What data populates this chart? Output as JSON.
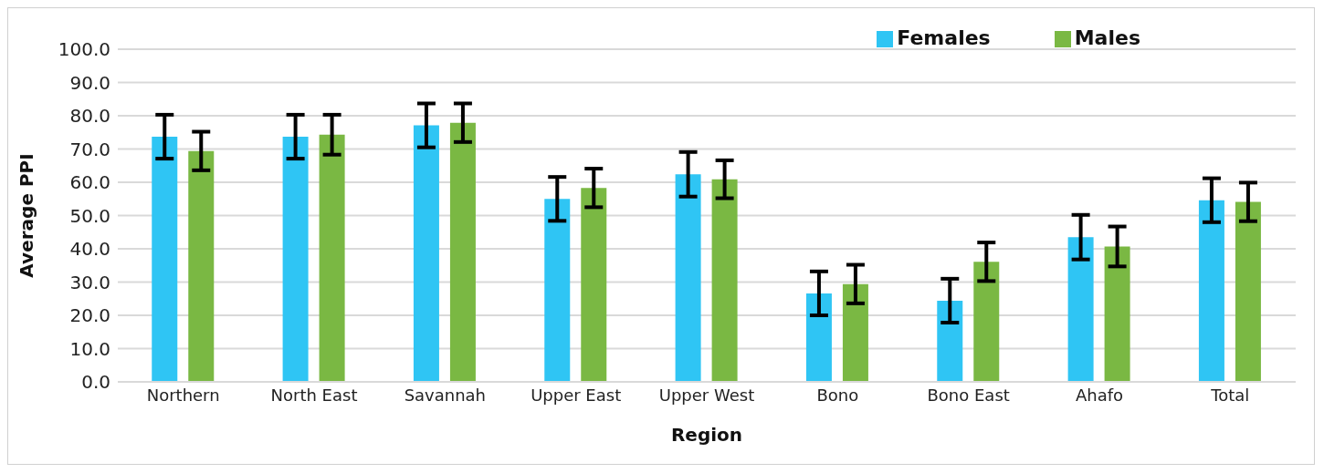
{
  "chart_data": {
    "type": "bar",
    "xlabel": "Region",
    "ylabel": "Average PPI",
    "categories": [
      "Northern",
      "North East",
      "Savannah",
      "Upper East",
      "Upper West",
      "Bono",
      "Bono East",
      "Ahafo",
      "Total"
    ],
    "series": [
      {
        "name": "Females",
        "color": "#2fc5f4",
        "values": [
          73.7,
          73.7,
          77.1,
          55.0,
          62.4,
          26.6,
          24.4,
          43.5,
          54.6
        ],
        "errors": [
          6.6,
          6.6,
          6.6,
          6.6,
          6.7,
          6.6,
          6.6,
          6.7,
          6.6
        ]
      },
      {
        "name": "Males",
        "color": "#7ab843",
        "values": [
          69.4,
          74.3,
          77.9,
          58.3,
          60.9,
          29.4,
          36.1,
          40.7,
          54.1
        ],
        "errors": [
          5.8,
          6.0,
          5.8,
          5.8,
          5.7,
          5.8,
          5.8,
          6.0,
          5.8
        ]
      }
    ],
    "ylim": [
      0,
      100
    ],
    "yticks": [
      {
        "value": 0,
        "label": "0.0"
      },
      {
        "value": 10,
        "label": "10.0"
      },
      {
        "value": 20,
        "label": "20.0"
      },
      {
        "value": 30,
        "label": "30.0"
      },
      {
        "value": 40,
        "label": "40.0"
      },
      {
        "value": 50,
        "label": "50.0"
      },
      {
        "value": 60,
        "label": "60.0"
      },
      {
        "value": 70,
        "label": "70.0"
      },
      {
        "value": 80,
        "label": "80.0"
      },
      {
        "value": 90,
        "label": "90.0"
      },
      {
        "value": 100,
        "label": "100.0"
      }
    ],
    "grid": "y",
    "legend": "top right"
  }
}
